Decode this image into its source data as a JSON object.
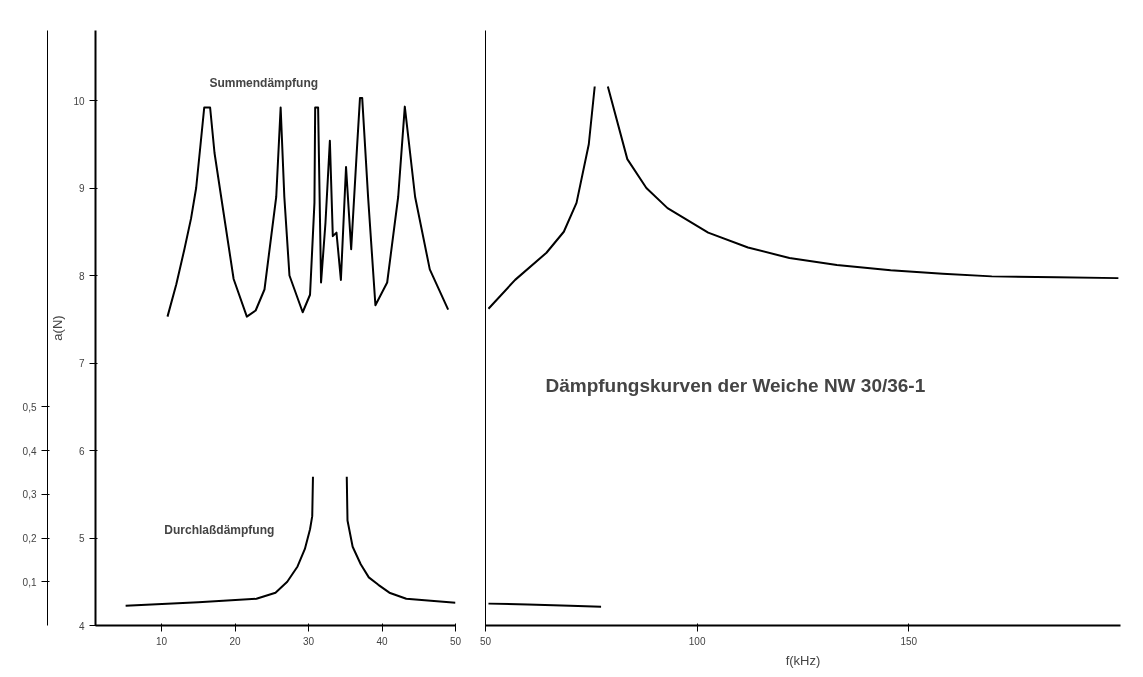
{
  "chart_data": [
    {
      "type": "line",
      "ylabel": "a(N)",
      "xlim": [
        1,
        50
      ],
      "xticks": [
        10,
        20,
        30,
        40,
        50
      ],
      "ylim": [
        4,
        10.8
      ],
      "yticks": [
        4,
        5,
        6,
        7,
        8,
        9,
        10
      ],
      "y2lim": [
        0,
        1.36
      ],
      "y2ticks": [
        {
          "value": 0.1,
          "label": "0,1"
        },
        {
          "value": 0.2,
          "label": "0,2"
        },
        {
          "value": 0.3,
          "label": "0,3"
        },
        {
          "value": 0.4,
          "label": "0,4"
        },
        {
          "value": 0.5,
          "label": "0,5"
        }
      ],
      "grid": false,
      "marker": "none",
      "line_style": "solid",
      "series": [
        {
          "name": "Summendämpfung",
          "color": "#000000",
          "x": [
            10.8,
            12.0,
            13.1,
            14.0,
            14.7,
            15.3,
            15.8,
            16.6,
            17.2,
            18.1,
            19.8,
            21.6,
            22.8,
            24.0,
            25.6,
            26.2,
            26.7,
            27.4,
            29.2,
            30.2,
            30.8,
            30.9,
            31.3,
            31.7,
            32.3,
            32.9,
            33.3,
            33.8,
            34.4,
            35.1,
            35.8,
            36.6,
            37.0,
            37.3,
            38.1,
            39.1,
            40.7,
            42.2,
            43.1,
            44.5,
            46.5,
            49.0
          ],
          "values": [
            7.53,
            7.9,
            8.3,
            8.65,
            9.0,
            9.5,
            9.92,
            9.92,
            9.4,
            8.9,
            7.96,
            7.53,
            7.6,
            7.84,
            8.9,
            9.92,
            8.9,
            8.0,
            7.58,
            7.78,
            8.83,
            9.92,
            9.92,
            7.92,
            8.6,
            9.54,
            8.45,
            8.49,
            7.95,
            9.24,
            8.3,
            9.47,
            10.03,
            10.03,
            8.9,
            7.66,
            7.92,
            8.9,
            9.93,
            8.9,
            8.07,
            7.61
          ]
        },
        {
          "name": "Durchlaßdämpfung",
          "color": "#000000",
          "axis": "y2",
          "x": [
            5.1,
            15.0,
            22.9,
            25.5,
            27.1,
            28.5,
            29.5,
            30.2,
            30.5,
            30.6,
            null,
            35.2,
            35.3,
            36.0,
            37.1,
            38.2,
            39.5,
            41.0,
            43.3,
            50.0
          ],
          "values": [
            0.045,
            0.053,
            0.061,
            0.075,
            0.1,
            0.135,
            0.175,
            0.22,
            0.25,
            0.34,
            null,
            0.34,
            0.24,
            0.18,
            0.14,
            0.11,
            0.093,
            0.075,
            0.061,
            0.052
          ]
        }
      ]
    },
    {
      "type": "line",
      "title": "Dämpfungskurven der Weiche NW 30/36-1",
      "xlabel": "f(kHz)",
      "xlim": [
        50,
        200
      ],
      "xticks": [
        50,
        100,
        150
      ],
      "ylim": [
        4,
        10.8
      ],
      "yticks": [
        4,
        5,
        6,
        7,
        8,
        9,
        10
      ],
      "y2lim": [
        0,
        1.36
      ],
      "tick_labels": "x",
      "grid": false,
      "marker": "none",
      "line_style": "solid",
      "series": [
        {
          "color": "#000000",
          "x": [
            50.7,
            57.0,
            64.4,
            68.5,
            71.5,
            74.4,
            75.8,
            null,
            78.9,
            83.5,
            88.0,
            93.0,
            102.6,
            112.0,
            121.8,
            133.0,
            145.7,
            158.0,
            169.6,
            185.0,
            199.5
          ],
          "values": [
            7.62,
            7.95,
            8.26,
            8.5,
            8.83,
            9.5,
            10.16,
            null,
            10.16,
            9.33,
            9.0,
            8.77,
            8.49,
            8.32,
            8.2,
            8.12,
            8.06,
            8.02,
            7.99,
            7.98,
            7.97
          ]
        },
        {
          "color": "#000000",
          "axis": "y2",
          "x": [
            50.7,
            60.0,
            70.0,
            77.3
          ],
          "values": [
            0.05,
            0.048,
            0.045,
            0.043
          ]
        }
      ]
    }
  ]
}
